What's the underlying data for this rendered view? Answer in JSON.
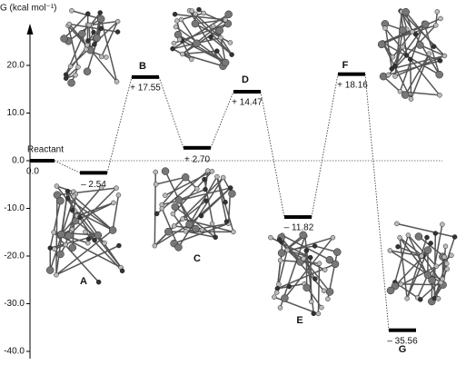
{
  "chart_data": {
    "type": "energy-profile",
    "y_label": "G (kcal mol⁻¹)",
    "categories": [
      "Reactant",
      "A",
      "B",
      "C",
      "D",
      "E",
      "F",
      "G"
    ],
    "values": [
      0.0,
      -2.54,
      17.55,
      2.7,
      14.47,
      -11.82,
      18.16,
      -35.56
    ],
    "value_labels": [
      "0.0",
      "– 2.54",
      "+ 17.55",
      "+ 2.70",
      "+ 14.47",
      "– 11.82",
      "+ 18.16",
      "– 35.56"
    ],
    "color": "#000000",
    "ylim": [
      -42,
      26
    ],
    "yticks": [
      {
        "value": 20,
        "label": "20.0"
      },
      {
        "value": 10,
        "label": "10.0"
      },
      {
        "value": 0,
        "label": "0.0"
      },
      {
        "value": -10,
        "label": "-10.0"
      },
      {
        "value": -20,
        "label": "-20.0"
      },
      {
        "value": -30,
        "label": "-30.0"
      },
      {
        "value": -40,
        "label": "-40.0"
      }
    ]
  }
}
